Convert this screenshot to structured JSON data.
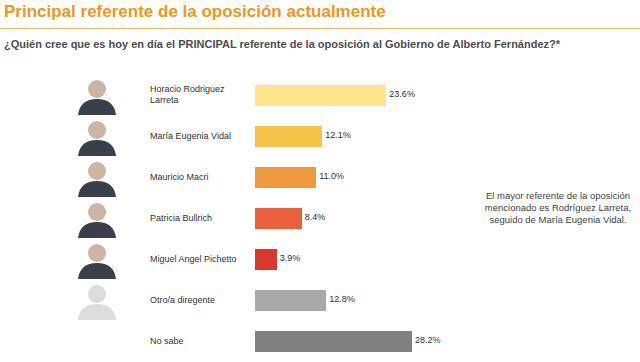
{
  "chart_data": {
    "type": "bar",
    "orientation": "horizontal",
    "title": "Principal referente de la oposición actualmente",
    "subtitle": "¿Quién cree que es hoy en día el PRINCIPAL referente de la oposición al Gobierno de Alberto Fernández?*",
    "annotation": "El mayor referente de la oposición mencionado es Rodríguez Larreta, seguido de María Eugenia Vidal.",
    "categories": [
      "Horacio Rodriguez Larreta",
      "María Eugenia Vidal",
      "Mauricio Macri",
      "Patricia Bullrich",
      "Miguel Angel Pichetto",
      "Otro/a diregente",
      "No sabe"
    ],
    "values": [
      23.6,
      12.1,
      11.0,
      8.4,
      3.9,
      12.8,
      28.2
    ],
    "value_labels": [
      "23.6%",
      "12.1%",
      "11.0%",
      "8.4%",
      "3.9%",
      "12.8%",
      "28.2%"
    ],
    "colors": [
      "#fde58c",
      "#f6c349",
      "#ef9a3e",
      "#e9603a",
      "#d8392c",
      "#a8a8a8",
      "#808080"
    ],
    "xlim": [
      0,
      30
    ],
    "data_labels": true,
    "tick_labels": "y",
    "grid": false
  }
}
